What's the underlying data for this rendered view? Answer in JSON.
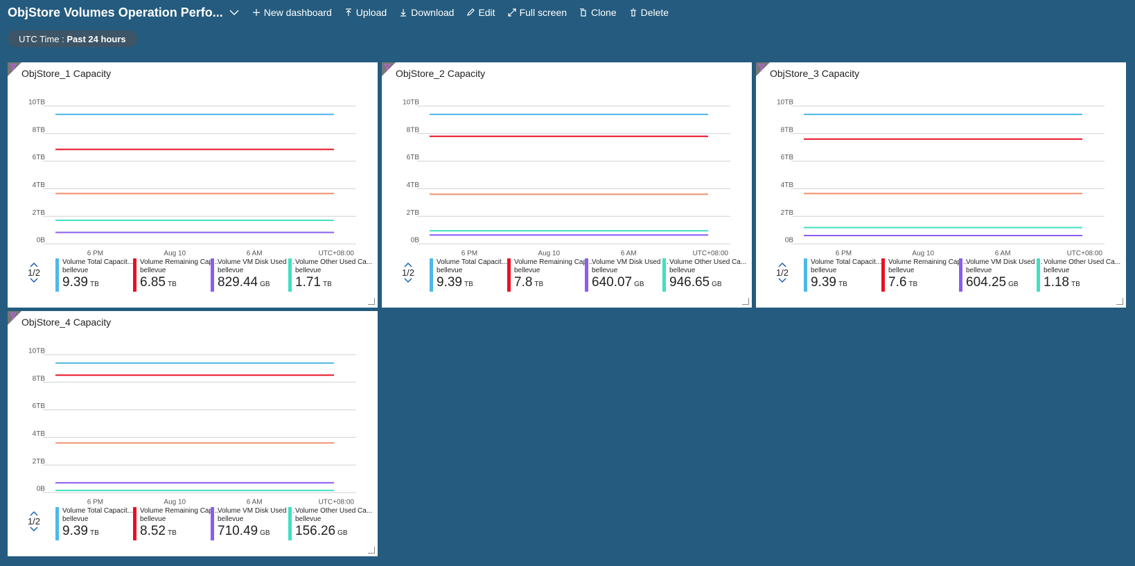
{
  "toolbar": {
    "title": "ObjStore Volumes Operation Perfo...",
    "buttons": [
      "New dashboard",
      "Upload",
      "Download",
      "Edit",
      "Full screen",
      "Clone",
      "Delete"
    ]
  },
  "filter": {
    "label": "UTC Time : ",
    "value": "Past 24 hours"
  },
  "chart_data": [
    {
      "type": "line",
      "title": "ObjStore_1 Capacity",
      "categories": [
        null,
        "6 PM",
        null,
        "Aug 10",
        null,
        "6 AM",
        null,
        null
      ],
      "timezone_label": "UTC+08:00",
      "ylim": [
        0,
        10
      ],
      "yticks": [
        {
          "value": 0,
          "label": "0B"
        },
        {
          "value": 2,
          "label": "2TB"
        },
        {
          "value": 4,
          "label": "4TB"
        },
        {
          "value": 6,
          "label": "6TB"
        },
        {
          "value": 8,
          "label": "8TB"
        },
        {
          "value": 10,
          "label": "10TB"
        }
      ],
      "grid": true,
      "legend_page": "1/2",
      "series": [
        {
          "name": "Volume Total Capacit...",
          "subtitle": "bellevue",
          "legend_value": "9.39",
          "legend_unit": "TB",
          "color": "#4db8e8",
          "values": [
            9.39,
            9.39,
            9.39,
            9.39,
            9.39,
            9.39,
            9.39,
            9.39
          ]
        },
        {
          "name": "Volume Remaining Cap...",
          "subtitle": "bellevue",
          "legend_value": "6.85",
          "legend_unit": "TB",
          "color": "#e81123",
          "values": [
            6.85,
            6.85,
            6.85,
            6.85,
            6.85,
            6.85,
            6.85,
            6.85
          ]
        },
        {
          "name": "Volume VM Disk Used ...",
          "subtitle": "bellevue",
          "legend_value": "829.44",
          "legend_unit": "GB",
          "color": "#8a5cf5",
          "values": [
            0.83,
            0.83,
            0.83,
            0.83,
            0.83,
            0.83,
            0.83,
            0.83
          ]
        },
        {
          "name": "Volume Other Used Ca...",
          "subtitle": "bellevue",
          "legend_value": "1.71",
          "legend_unit": "TB",
          "color": "#40e0c0",
          "values": [
            1.71,
            1.71,
            1.71,
            1.71,
            1.71,
            1.71,
            1.71,
            1.71
          ]
        },
        {
          "color": "#f28f6b",
          "values": [
            3.65,
            3.65,
            3.65,
            3.65,
            3.65,
            3.65,
            3.65,
            3.65
          ]
        }
      ]
    },
    {
      "type": "line",
      "title": "ObjStore_2 Capacity",
      "categories": [
        null,
        "6 PM",
        null,
        "Aug 10",
        null,
        "6 AM",
        null,
        null
      ],
      "timezone_label": "UTC+08:00",
      "ylim": [
        0,
        10
      ],
      "yticks": [
        {
          "value": 0,
          "label": "0B"
        },
        {
          "value": 2,
          "label": "2TB"
        },
        {
          "value": 4,
          "label": "4TB"
        },
        {
          "value": 6,
          "label": "6TB"
        },
        {
          "value": 8,
          "label": "8TB"
        },
        {
          "value": 10,
          "label": "10TB"
        }
      ],
      "grid": true,
      "legend_page": "1/2",
      "series": [
        {
          "name": "Volume Total Capacit...",
          "subtitle": "bellevue",
          "legend_value": "9.39",
          "legend_unit": "TB",
          "color": "#4db8e8",
          "values": [
            9.39,
            9.39,
            9.39,
            9.39,
            9.39,
            9.39,
            9.39,
            9.39
          ]
        },
        {
          "name": "Volume Remaining Cap...",
          "subtitle": "bellevue",
          "legend_value": "7.8",
          "legend_unit": "TB",
          "color": "#e81123",
          "values": [
            7.8,
            7.8,
            7.8,
            7.8,
            7.8,
            7.8,
            7.8,
            7.8
          ]
        },
        {
          "name": "Volume VM Disk Used ...",
          "subtitle": "bellevue",
          "legend_value": "640.07",
          "legend_unit": "GB",
          "color": "#8a5cf5",
          "values": [
            0.64,
            0.64,
            0.64,
            0.64,
            0.64,
            0.64,
            0.64,
            0.64
          ]
        },
        {
          "name": "Volume Other Used Ca...",
          "subtitle": "bellevue",
          "legend_value": "946.65",
          "legend_unit": "GB",
          "color": "#40e0c0",
          "values": [
            0.95,
            0.95,
            0.95,
            0.95,
            0.95,
            0.95,
            0.95,
            0.95
          ]
        },
        {
          "color": "#f28f6b",
          "values": [
            3.6,
            3.6,
            3.6,
            3.6,
            3.6,
            3.6,
            3.6,
            3.6
          ]
        }
      ]
    },
    {
      "type": "line",
      "title": "ObjStore_3 Capacity",
      "categories": [
        null,
        "6 PM",
        null,
        "Aug 10",
        null,
        "6 AM",
        null,
        null
      ],
      "timezone_label": "UTC+08:00",
      "ylim": [
        0,
        10
      ],
      "yticks": [
        {
          "value": 0,
          "label": "0B"
        },
        {
          "value": 2,
          "label": "2TB"
        },
        {
          "value": 4,
          "label": "4TB"
        },
        {
          "value": 6,
          "label": "6TB"
        },
        {
          "value": 8,
          "label": "8TB"
        },
        {
          "value": 10,
          "label": "10TB"
        }
      ],
      "grid": true,
      "legend_page": "1/2",
      "series": [
        {
          "name": "Volume Total Capacit...",
          "subtitle": "bellevue",
          "legend_value": "9.39",
          "legend_unit": "TB",
          "color": "#4db8e8",
          "values": [
            9.39,
            9.39,
            9.39,
            9.39,
            9.39,
            9.39,
            9.39,
            9.39
          ]
        },
        {
          "name": "Volume Remaining Cap...",
          "subtitle": "bellevue",
          "legend_value": "7.6",
          "legend_unit": "TB",
          "color": "#e81123",
          "values": [
            7.6,
            7.6,
            7.6,
            7.6,
            7.6,
            7.6,
            7.6,
            7.6
          ]
        },
        {
          "name": "Volume VM Disk Used ...",
          "subtitle": "bellevue",
          "legend_value": "604.25",
          "legend_unit": "GB",
          "color": "#8a5cf5",
          "values": [
            0.6,
            0.6,
            0.6,
            0.6,
            0.6,
            0.6,
            0.6,
            0.6
          ]
        },
        {
          "name": "Volume Other Used Ca...",
          "subtitle": "bellevue",
          "legend_value": "1.18",
          "legend_unit": "TB",
          "color": "#40e0c0",
          "values": [
            1.18,
            1.18,
            1.18,
            1.18,
            1.18,
            1.18,
            1.18,
            1.18
          ]
        },
        {
          "color": "#f28f6b",
          "values": [
            3.65,
            3.65,
            3.65,
            3.65,
            3.65,
            3.65,
            3.65,
            3.65
          ]
        }
      ]
    },
    {
      "type": "line",
      "title": "ObjStore_4 Capacity",
      "categories": [
        null,
        "6 PM",
        null,
        "Aug 10",
        null,
        "6 AM",
        null,
        null
      ],
      "timezone_label": "UTC+08:00",
      "ylim": [
        0,
        10
      ],
      "yticks": [
        {
          "value": 0,
          "label": "0B"
        },
        {
          "value": 2,
          "label": "2TB"
        },
        {
          "value": 4,
          "label": "4TB"
        },
        {
          "value": 6,
          "label": "6TB"
        },
        {
          "value": 8,
          "label": "8TB"
        },
        {
          "value": 10,
          "label": "10TB"
        }
      ],
      "grid": true,
      "legend_page": "1/2",
      "series": [
        {
          "name": "Volume Total Capacit...",
          "subtitle": "bellevue",
          "legend_value": "9.39",
          "legend_unit": "TB",
          "color": "#4db8e8",
          "values": [
            9.39,
            9.39,
            9.39,
            9.39,
            9.39,
            9.39,
            9.39,
            9.39
          ]
        },
        {
          "name": "Volume Remaining Cap...",
          "subtitle": "bellevue",
          "legend_value": "8.52",
          "legend_unit": "TB",
          "color": "#e81123",
          "values": [
            8.52,
            8.52,
            8.52,
            8.52,
            8.52,
            8.52,
            8.52,
            8.52
          ]
        },
        {
          "name": "Volume VM Disk Used ...",
          "subtitle": "bellevue",
          "legend_value": "710.49",
          "legend_unit": "GB",
          "color": "#8a5cf5",
          "values": [
            0.71,
            0.71,
            0.71,
            0.71,
            0.71,
            0.71,
            0.71,
            0.71
          ]
        },
        {
          "name": "Volume Other Used Ca...",
          "subtitle": "bellevue",
          "legend_value": "156.26",
          "legend_unit": "GB",
          "color": "#40e0c0",
          "values": [
            0.16,
            0.16,
            0.16,
            0.16,
            0.16,
            0.16,
            0.16,
            0.16
          ]
        },
        {
          "color": "#f28f6b",
          "values": [
            3.6,
            3.6,
            3.6,
            3.6,
            3.6,
            3.6,
            3.6,
            3.6
          ]
        }
      ]
    }
  ]
}
